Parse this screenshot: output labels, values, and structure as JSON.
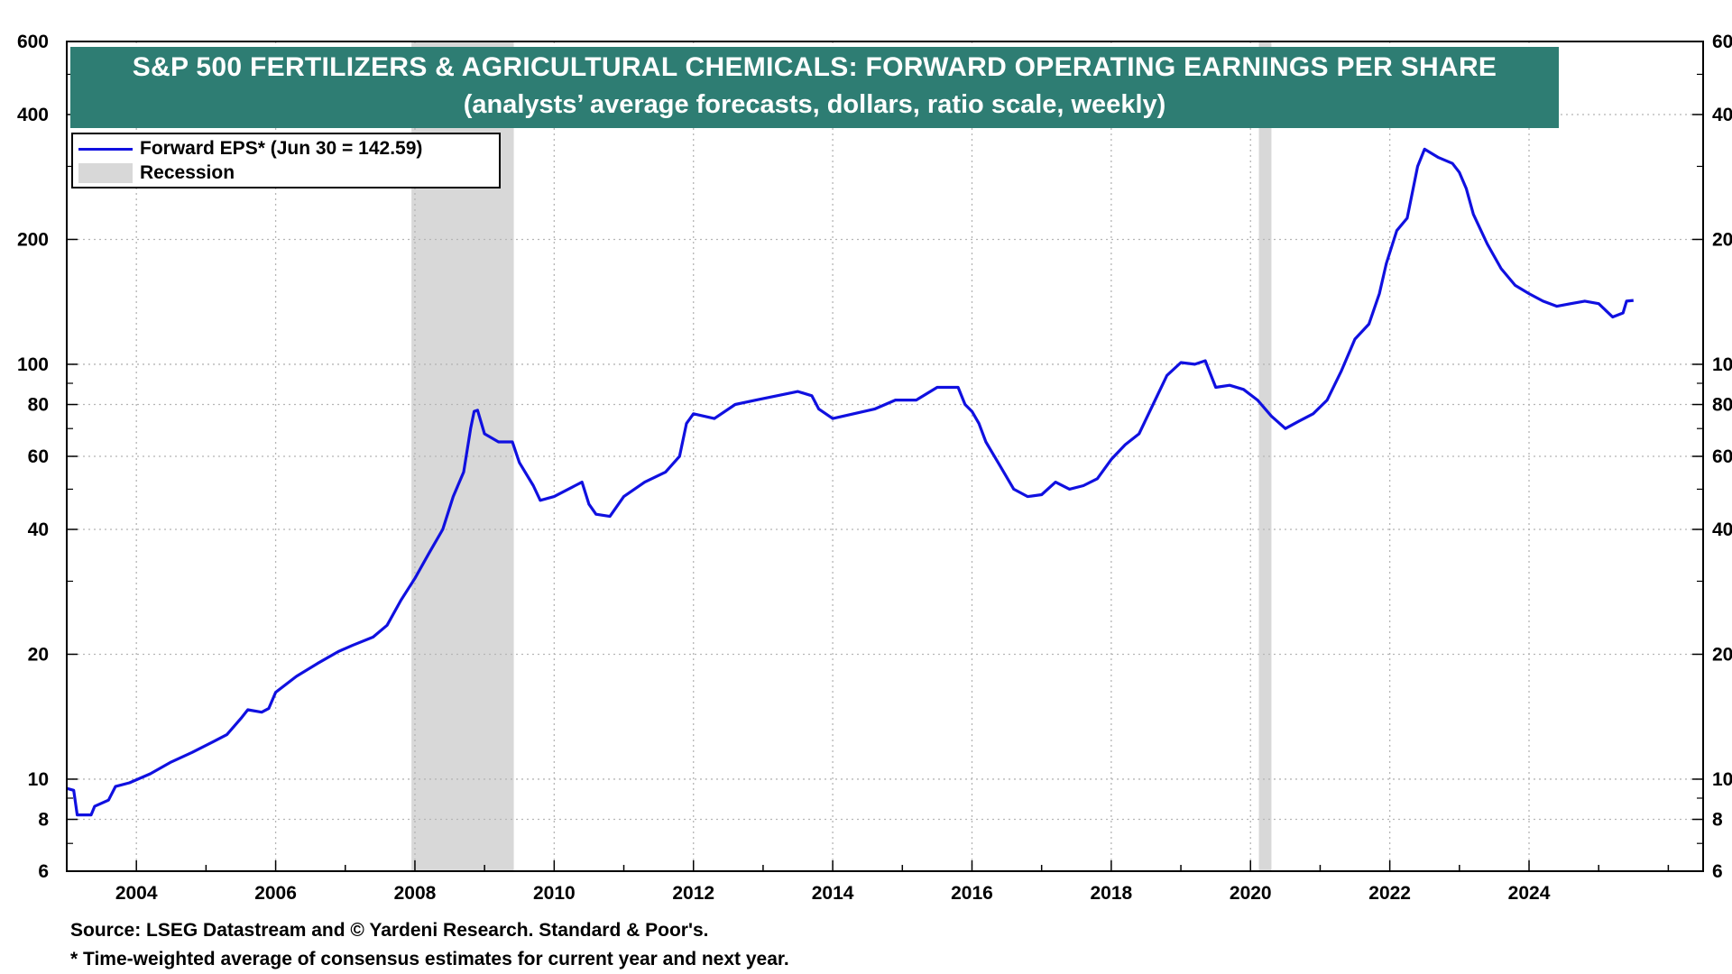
{
  "title": {
    "line1": "S&P 500 FERTILIZERS & AGRICULTURAL CHEMICALS: FORWARD OPERATING EARNINGS PER SHARE",
    "line2": "(analysts’ average forecasts, dollars, ratio scale, weekly)"
  },
  "legend": {
    "series_label": "Forward EPS* (Jun 30 = 142.59)",
    "recession_label": "Recession"
  },
  "footnotes": {
    "source": "Source: LSEG Datastream and © Yardeni Research. Standard & Poor's.",
    "note": "* Time-weighted average of consensus estimates for current year and next year."
  },
  "colors": {
    "series": "#1010e0",
    "recession": "#d8d8d8",
    "title_bg": "#2e7d73",
    "title_text": "#ffffff"
  },
  "chart_data": {
    "type": "line",
    "scale": "log",
    "x_range": [
      2003.0,
      2026.5
    ],
    "ylim": [
      6,
      600
    ],
    "x_ticks": [
      "2004",
      "2006",
      "2008",
      "2010",
      "2012",
      "2014",
      "2016",
      "2018",
      "2020",
      "2022",
      "2024"
    ],
    "y_ticks": [
      "6",
      "8",
      "10",
      "20",
      "40",
      "60",
      "80",
      "100",
      "200",
      "400",
      "600"
    ],
    "grid": true,
    "legend_position": "top-left",
    "recessions": [
      [
        2007.95,
        2009.42
      ],
      [
        2020.12,
        2020.3
      ]
    ],
    "series": [
      {
        "name": "Forward EPS* (Jun 30 = 142.59)",
        "points": [
          [
            2003.0,
            9.5
          ],
          [
            2003.1,
            9.4
          ],
          [
            2003.15,
            8.2
          ],
          [
            2003.35,
            8.2
          ],
          [
            2003.4,
            8.6
          ],
          [
            2003.6,
            8.9
          ],
          [
            2003.7,
            9.6
          ],
          [
            2003.9,
            9.8
          ],
          [
            2004.2,
            10.3
          ],
          [
            2004.5,
            11.0
          ],
          [
            2004.8,
            11.6
          ],
          [
            2005.1,
            12.3
          ],
          [
            2005.3,
            12.8
          ],
          [
            2005.5,
            14.0
          ],
          [
            2005.6,
            14.7
          ],
          [
            2005.8,
            14.5
          ],
          [
            2005.9,
            14.8
          ],
          [
            2006.0,
            16.2
          ],
          [
            2006.3,
            17.7
          ],
          [
            2006.6,
            19.0
          ],
          [
            2006.9,
            20.3
          ],
          [
            2007.1,
            21.0
          ],
          [
            2007.4,
            22.0
          ],
          [
            2007.6,
            23.5
          ],
          [
            2007.8,
            27.0
          ],
          [
            2008.0,
            30.5
          ],
          [
            2008.2,
            35.0
          ],
          [
            2008.4,
            40.0
          ],
          [
            2008.55,
            48.0
          ],
          [
            2008.7,
            55.0
          ],
          [
            2008.8,
            70.0
          ],
          [
            2008.85,
            77.0
          ],
          [
            2008.9,
            77.5
          ],
          [
            2009.0,
            68.0
          ],
          [
            2009.2,
            65.0
          ],
          [
            2009.4,
            65.0
          ],
          [
            2009.5,
            58.0
          ],
          [
            2009.7,
            51.0
          ],
          [
            2009.8,
            47.0
          ],
          [
            2010.0,
            48.0
          ],
          [
            2010.3,
            51.0
          ],
          [
            2010.4,
            52.0
          ],
          [
            2010.5,
            46.0
          ],
          [
            2010.6,
            43.5
          ],
          [
            2010.8,
            43.0
          ],
          [
            2011.0,
            48.0
          ],
          [
            2011.3,
            52.0
          ],
          [
            2011.6,
            55.0
          ],
          [
            2011.8,
            60.0
          ],
          [
            2011.9,
            72.0
          ],
          [
            2012.0,
            76.0
          ],
          [
            2012.3,
            74.0
          ],
          [
            2012.6,
            80.0
          ],
          [
            2012.9,
            82.0
          ],
          [
            2013.2,
            84.0
          ],
          [
            2013.5,
            86.0
          ],
          [
            2013.7,
            84.0
          ],
          [
            2013.8,
            78.0
          ],
          [
            2014.0,
            74.0
          ],
          [
            2014.3,
            76.0
          ],
          [
            2014.6,
            78.0
          ],
          [
            2014.9,
            82.0
          ],
          [
            2015.2,
            82.0
          ],
          [
            2015.5,
            88.0
          ],
          [
            2015.8,
            88.0
          ],
          [
            2015.9,
            80.0
          ],
          [
            2016.0,
            77.0
          ],
          [
            2016.1,
            72.0
          ],
          [
            2016.2,
            65.0
          ],
          [
            2016.4,
            57.0
          ],
          [
            2016.6,
            50.0
          ],
          [
            2016.8,
            48.0
          ],
          [
            2017.0,
            48.5
          ],
          [
            2017.2,
            52.0
          ],
          [
            2017.4,
            50.0
          ],
          [
            2017.6,
            51.0
          ],
          [
            2017.8,
            53.0
          ],
          [
            2018.0,
            59.0
          ],
          [
            2018.2,
            64.0
          ],
          [
            2018.4,
            68.0
          ],
          [
            2018.6,
            80.0
          ],
          [
            2018.8,
            94.0
          ],
          [
            2019.0,
            101.0
          ],
          [
            2019.2,
            100.0
          ],
          [
            2019.35,
            102.0
          ],
          [
            2019.5,
            88.0
          ],
          [
            2019.7,
            89.0
          ],
          [
            2019.9,
            87.0
          ],
          [
            2020.1,
            82.0
          ],
          [
            2020.3,
            75.0
          ],
          [
            2020.5,
            70.0
          ],
          [
            2020.7,
            73.0
          ],
          [
            2020.9,
            76.0
          ],
          [
            2021.1,
            82.0
          ],
          [
            2021.3,
            96.0
          ],
          [
            2021.5,
            115.0
          ],
          [
            2021.7,
            125.0
          ],
          [
            2021.85,
            148.0
          ],
          [
            2021.95,
            175.0
          ],
          [
            2022.1,
            210.0
          ],
          [
            2022.25,
            225.0
          ],
          [
            2022.4,
            300.0
          ],
          [
            2022.5,
            330.0
          ],
          [
            2022.7,
            315.0
          ],
          [
            2022.9,
            305.0
          ],
          [
            2023.0,
            290.0
          ],
          [
            2023.1,
            265.0
          ],
          [
            2023.2,
            230.0
          ],
          [
            2023.4,
            195.0
          ],
          [
            2023.6,
            170.0
          ],
          [
            2023.8,
            155.0
          ],
          [
            2024.0,
            148.0
          ],
          [
            2024.2,
            142.0
          ],
          [
            2024.4,
            138.0
          ],
          [
            2024.6,
            140.0
          ],
          [
            2024.8,
            142.0
          ],
          [
            2025.0,
            140.0
          ],
          [
            2025.2,
            130.0
          ],
          [
            2025.35,
            133.0
          ],
          [
            2025.4,
            142.0
          ],
          [
            2025.5,
            142.59
          ]
        ]
      }
    ]
  }
}
